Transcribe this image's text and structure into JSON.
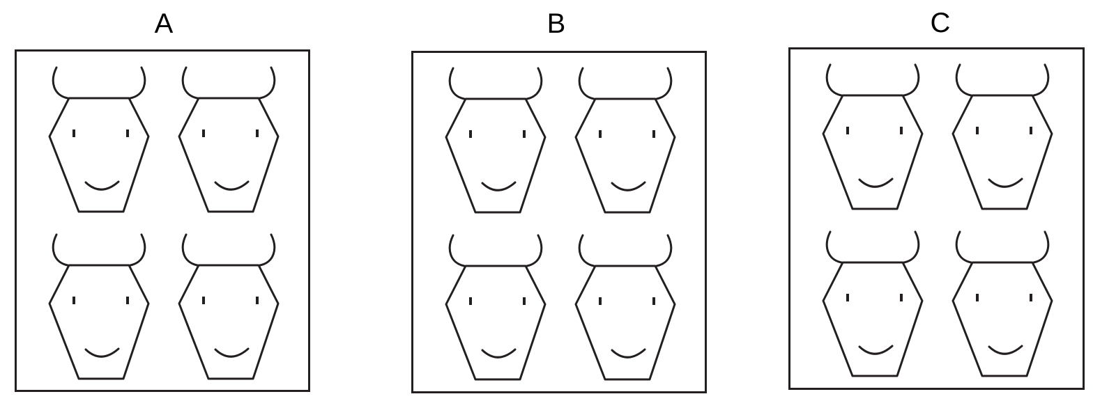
{
  "panels": [
    {
      "label": "A",
      "count": 4
    },
    {
      "label": "B",
      "count": 4
    },
    {
      "label": "C",
      "count": 4
    }
  ],
  "colors": {
    "stroke": "#231f20",
    "background": "#ffffff"
  },
  "icon": "bull-face-icon"
}
